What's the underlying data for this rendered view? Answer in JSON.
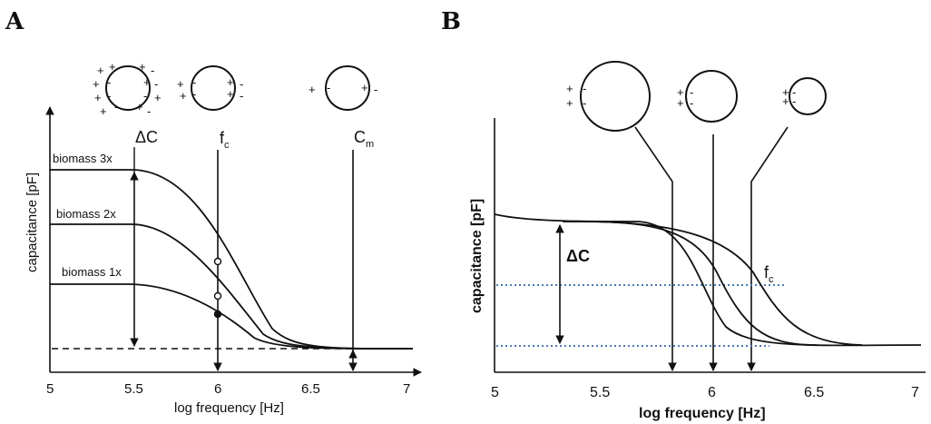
{
  "panels": {
    "a": {
      "letter": "A",
      "xlabel": "log frequency [Hz]",
      "ylabel": "capacitance [pF]",
      "x_ticks": [
        "5",
        "5.5",
        "6",
        "6.5",
        "7"
      ],
      "marker_labels": {
        "delta_c": "ΔC",
        "fc_main": "f",
        "fc_sub": "c",
        "cm_main": "C",
        "cm_sub": "m"
      },
      "curve_labels": [
        "biomass 3x",
        "biomass 2x",
        "biomass 1x"
      ]
    },
    "b": {
      "letter": "B",
      "xlabel": "log frequency [Hz]",
      "ylabel": "capacitance [pF]",
      "x_ticks": [
        "5",
        "5.5",
        "6",
        "6.5",
        "7"
      ],
      "delta_c": "ΔC",
      "fc_main": "f",
      "fc_sub": "c"
    }
  },
  "colors": {
    "ink": "#111111",
    "dotted_blue": "#4a78b5"
  },
  "chart_data": [
    {
      "type": "line",
      "xlim": [
        5,
        7
      ],
      "series": [
        {
          "name": "biomass 3x",
          "f_c": 6.0
        },
        {
          "name": "biomass 2x",
          "f_c": 6.0
        },
        {
          "name": "biomass 1x",
          "f_c": 6.0
        }
      ],
      "markers": {
        "delta_c_x": 5.5,
        "f_c_x": 6.0,
        "c_m_x": 6.7
      }
    },
    {
      "type": "line",
      "xlim": [
        5,
        7
      ],
      "f_c_values": [
        5.82,
        6.0,
        6.2
      ]
    }
  ]
}
